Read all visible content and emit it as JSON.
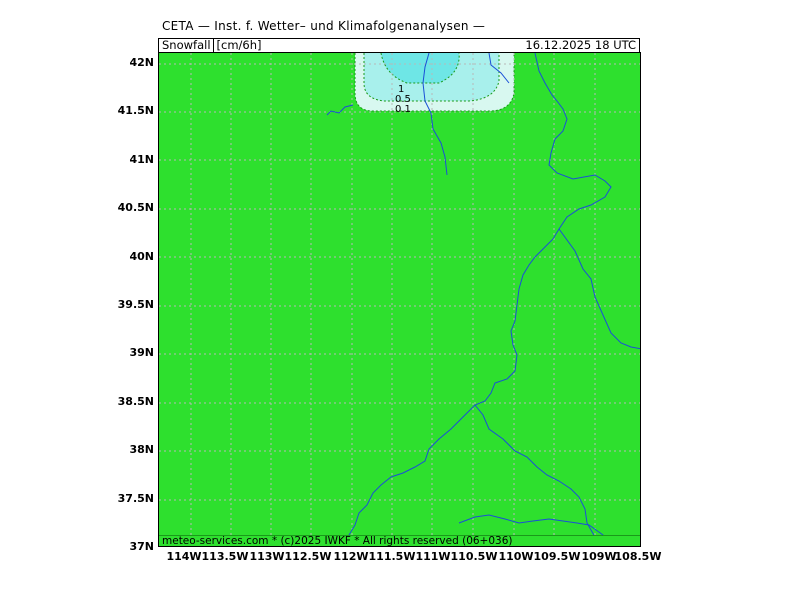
{
  "header": {
    "title": "CETA — Inst. f. Wetter– und Klimafolgenanalysen —",
    "parameter": "Snowfall",
    "unit": "[cm/6h]",
    "datetime": "16.12.2025  18 UTC"
  },
  "map": {
    "background_color": "#2ee02e",
    "grid_color": "#b0b0b0",
    "river_color": "#1a4fd8",
    "contour_colors": {
      "0.1": "#d8f8f0",
      "0.5": "#a8f0ec",
      "1": "#6ee6e6"
    },
    "lat_labels": [
      "42N",
      "41.5N",
      "41N",
      "40.5N",
      "40N",
      "39.5N",
      "39N",
      "38.5N",
      "38N",
      "37.5N",
      "37N"
    ],
    "lon_labels": [
      "114W",
      "113.5W",
      "113W",
      "112.5W",
      "112W",
      "111.5W",
      "111W",
      "110.5W",
      "110W",
      "109.5W",
      "109W",
      "108.5W"
    ],
    "contour_labels": [
      "1",
      "0.5",
      "0.1"
    ]
  },
  "footer": {
    "text": "meteo-services.com * (c)2025 IWKF * All rights reserved (06+036)"
  }
}
